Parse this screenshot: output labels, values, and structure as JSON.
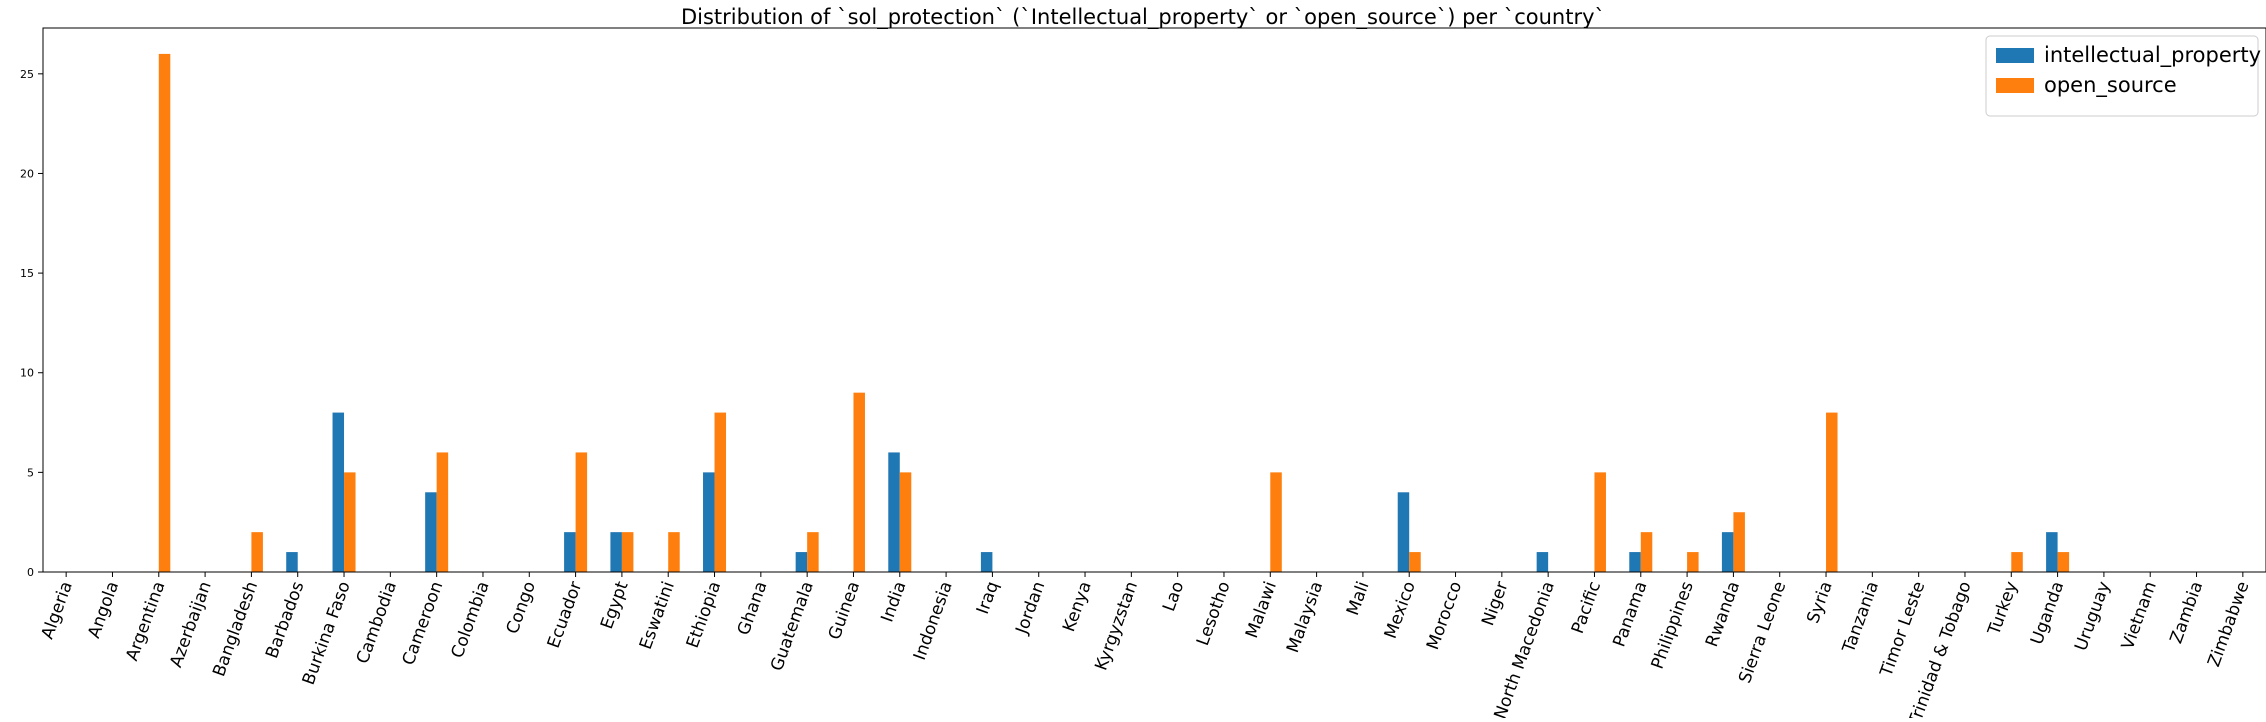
{
  "chart_data": {
    "type": "bar",
    "title": "Distribution of `sol_protection` (`Intellectual_property` or `open_source`) per `country`",
    "xlabel": "",
    "ylabel": "",
    "ylim": [
      0,
      27.3
    ],
    "yticks": [
      0,
      5,
      10,
      15,
      20,
      25
    ],
    "legend_position": "top-right",
    "categories": [
      "Algeria",
      "Angola",
      "Argentina",
      "Azerbaijan",
      "Bangladesh",
      "Barbados",
      "Burkina Faso",
      "Cambodia",
      "Cameroon",
      "Colombia",
      "Congo",
      "Ecuador",
      "Egypt",
      "Eswatini",
      "Ethiopia",
      "Ghana",
      "Guatemala",
      "Guinea",
      "India",
      "Indonesia",
      "Iraq",
      "Jordan",
      "Kenya",
      "Kyrgyzstan",
      "Lao",
      "Lesotho",
      "Malawi",
      "Malaysia",
      "Mali",
      "Mexico",
      "Morocco",
      "Niger",
      "North Macedonia",
      "Pacific",
      "Panama",
      "Philippines",
      "Rwanda",
      "Sierra Leone",
      "Syria",
      "Tanzania",
      "Timor Leste",
      "Trinidad & Tobago",
      "Turkey",
      "Uganda",
      "Uruguay",
      "Vietnam",
      "Zambia",
      "Zimbabwe"
    ],
    "series": [
      {
        "name": "intellectual_property",
        "color": "#1f77b4",
        "values": [
          0,
          0,
          0,
          0,
          0,
          1,
          8,
          0,
          4,
          0,
          0,
          2,
          2,
          0,
          5,
          0,
          1,
          0,
          6,
          0,
          1,
          0,
          0,
          0,
          0,
          0,
          0,
          0,
          0,
          4,
          0,
          0,
          1,
          0,
          1,
          0,
          2,
          0,
          0,
          0,
          0,
          0,
          0,
          2,
          0,
          0,
          0,
          0
        ]
      },
      {
        "name": "open_source",
        "color": "#ff7f0e",
        "values": [
          0,
          0,
          26,
          0,
          2,
          0,
          5,
          0,
          6,
          0,
          0,
          6,
          2,
          2,
          8,
          0,
          2,
          9,
          5,
          0,
          0,
          0,
          0,
          0,
          0,
          0,
          5,
          0,
          0,
          1,
          0,
          0,
          0,
          5,
          2,
          1,
          3,
          0,
          8,
          0,
          0,
          0,
          1,
          1,
          0,
          0,
          0,
          0
        ]
      }
    ]
  }
}
